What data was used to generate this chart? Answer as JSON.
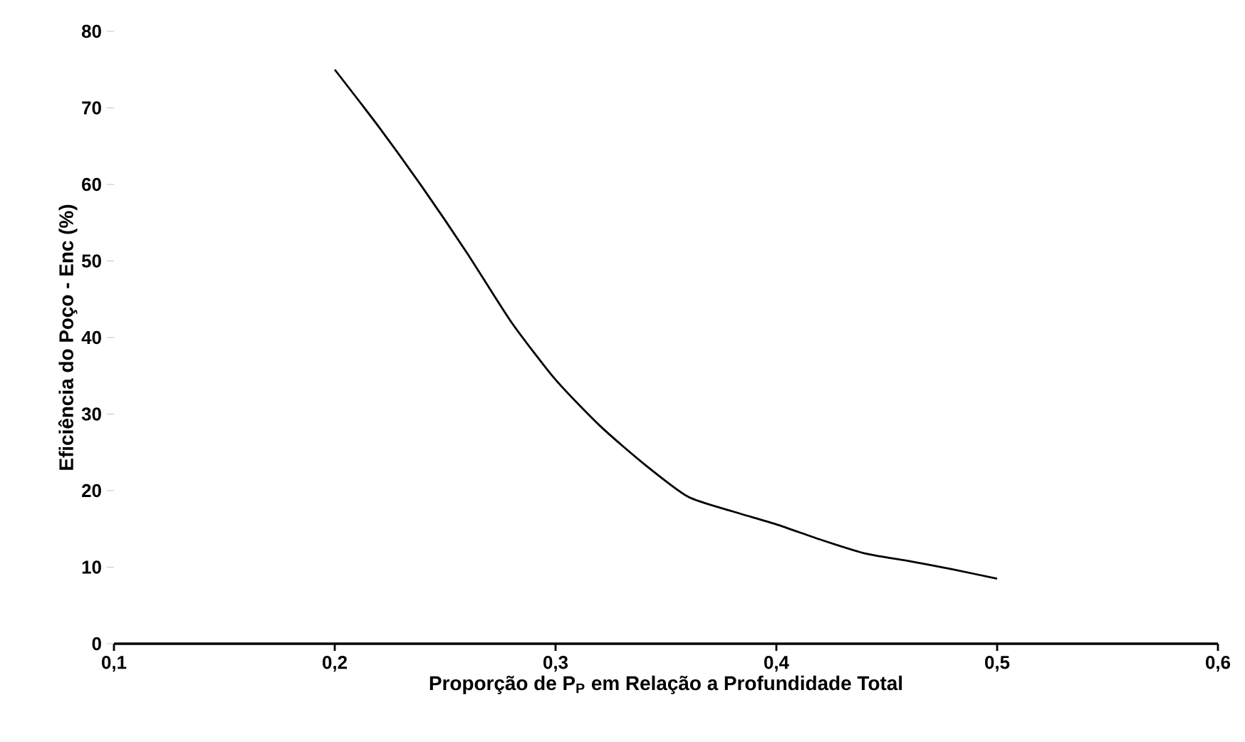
{
  "chart_data": {
    "type": "line",
    "xlabel": "Proporção de P$_{P}$ em Relação a Profundidade Total",
    "ylabel": "Eficiência do Poço - Enc (%)",
    "x": [
      0.2,
      0.22,
      0.24,
      0.26,
      0.28,
      0.3,
      0.32,
      0.34,
      0.36,
      0.38,
      0.4,
      0.42,
      0.44,
      0.46,
      0.48,
      0.5
    ],
    "series": [
      {
        "color": "#000000",
        "values": [
          75,
          67.5,
          59.5,
          51,
          42,
          34.5,
          28.5,
          23.5,
          19.2,
          17.3,
          15.6,
          13.6,
          11.8,
          10.8,
          9.7,
          8.5
        ]
      }
    ],
    "xlim": [
      0.1,
      0.6
    ],
    "xticks": [
      {
        "value": 0.1,
        "label": "0,1"
      },
      {
        "value": 0.2,
        "label": "0,2"
      },
      {
        "value": 0.3,
        "label": "0,3"
      },
      {
        "value": 0.4,
        "label": "0,4"
      },
      {
        "value": 0.5,
        "label": "0,5"
      },
      {
        "value": 0.6,
        "label": "0,6"
      }
    ],
    "ylim": [
      0,
      80
    ],
    "yticks": [
      0,
      10,
      20,
      30,
      40,
      50,
      60,
      70,
      80
    ],
    "marker": "none",
    "line_style": "solid"
  }
}
